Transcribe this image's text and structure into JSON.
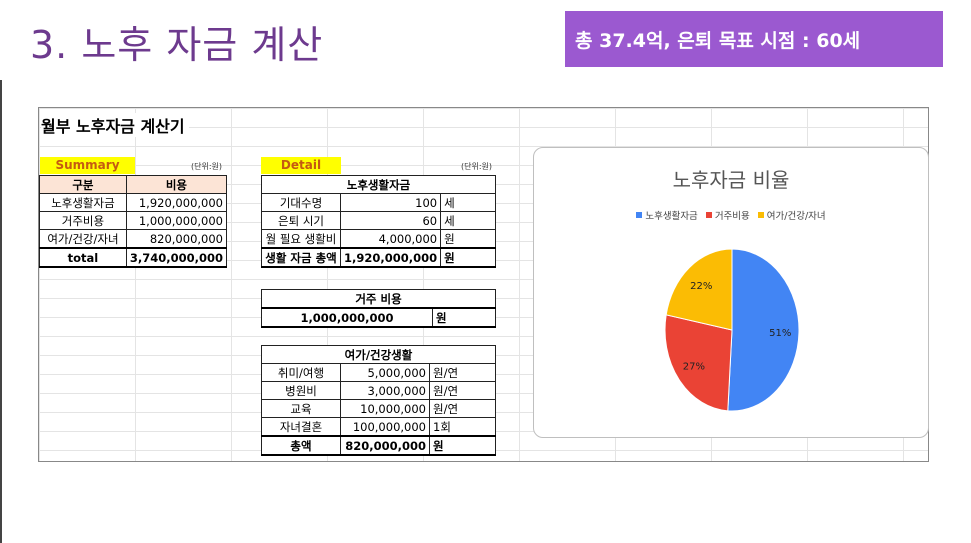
{
  "slide": {
    "title": "3. 노후 자금 계산",
    "banner": "총 37.4억, 은퇴 목표 시점  : 60세"
  },
  "sheet": {
    "title": "월부 노후자금 계산기",
    "summary": {
      "label": "Summary",
      "unit": "(단위:원)",
      "headers": [
        "구분",
        "비용"
      ],
      "rows": [
        [
          "노후생활자금",
          "1,920,000,000"
        ],
        [
          "거주비용",
          "1,000,000,000"
        ],
        [
          "여가/건강/자녀",
          "820,000,000"
        ]
      ],
      "total": [
        "total",
        "3,740,000,000"
      ]
    },
    "detail": {
      "label": "Detail",
      "unit": "(단위:원)",
      "living": {
        "header": "노후생활자금",
        "rows": [
          [
            "기대수명",
            "100",
            "세"
          ],
          [
            "은퇴 시기",
            "60",
            "세"
          ],
          [
            "월 필요 생활비",
            "4,000,000",
            "원"
          ]
        ],
        "total": [
          "생활 자금 총액",
          "1,920,000,000",
          "원"
        ]
      },
      "housing": {
        "header": "거주 비용",
        "value": "1,000,000,000",
        "unit": "원"
      },
      "leisure": {
        "header": "여가/건강생활",
        "rows": [
          [
            "취미/여행",
            "5,000,000",
            "원/연"
          ],
          [
            "병원비",
            "3,000,000",
            "원/연"
          ],
          [
            "교육",
            "10,000,000",
            "원/연"
          ],
          [
            "자녀결혼",
            "100,000,000",
            "1회"
          ]
        ],
        "total": [
          "총액",
          "820,000,000",
          "원"
        ]
      }
    }
  },
  "chart_data": {
    "type": "pie",
    "title": "노후자금 비율",
    "legend_position": "top",
    "categories": [
      "노후생활자금",
      "거주비용",
      "여가/건강/자녀"
    ],
    "values": [
      51,
      27,
      22
    ],
    "labels": [
      "51%",
      "27%",
      "22%"
    ],
    "colors": [
      "#4285f4",
      "#ea4335",
      "#fbbc04"
    ]
  }
}
